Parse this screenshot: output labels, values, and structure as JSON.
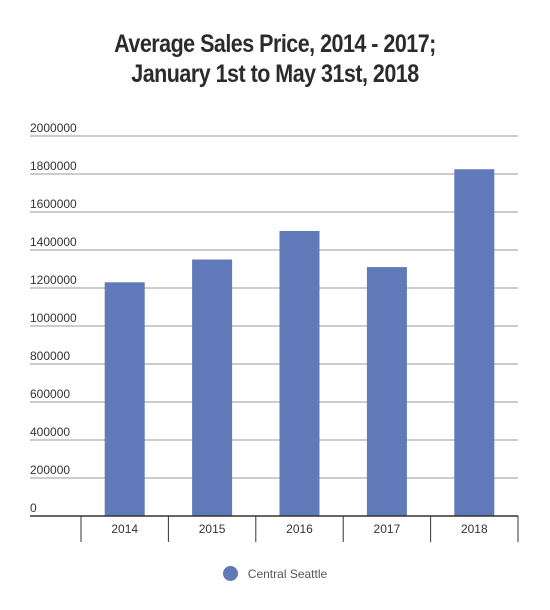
{
  "chart_data": {
    "type": "bar",
    "title_line1": "Average Sales Price, 2014 - 2017;",
    "title_line2": "January 1st to May 31st, 2018",
    "categories": [
      "2014",
      "2015",
      "2016",
      "2017",
      "2018"
    ],
    "series": [
      {
        "name": "Central Seattle",
        "values": [
          1230000,
          1350000,
          1500000,
          1310000,
          1825000
        ],
        "color": "#6079b8"
      }
    ],
    "yticks": [
      "2000000",
      "1800000",
      "1600000",
      "1400000",
      "1200000",
      "1000000",
      "800000",
      "600000",
      "400000",
      "200000",
      "0"
    ],
    "ylim": [
      0,
      2000000
    ],
    "grid": true,
    "legend_position": "bottom"
  }
}
